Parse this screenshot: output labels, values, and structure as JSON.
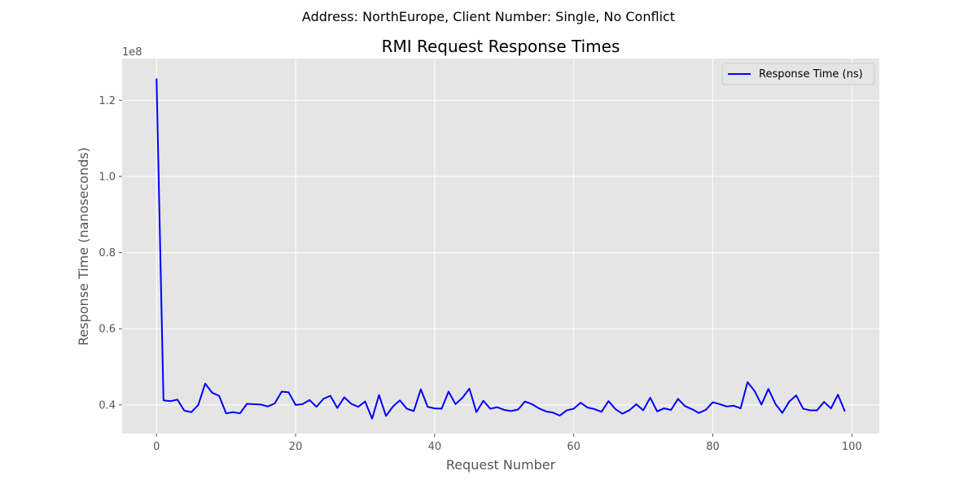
{
  "chart_data": {
    "type": "line",
    "suptitle": "Address: NorthEurope, Client Number: Single, No Conflict",
    "title": "RMI Request Response Times",
    "xlabel": "Request Number",
    "ylabel": "Response Time (nanoseconds)",
    "y_offset_label": "1e8",
    "xlim": [
      -4.95,
      103.95
    ],
    "ylim": [
      0.325,
      1.3095
    ],
    "y_scale_note": "values in units of 1e8 ns",
    "x_ticks": [
      0,
      20,
      40,
      60,
      80,
      100
    ],
    "x_tick_labels": [
      "0",
      "20",
      "40",
      "60",
      "80",
      "100"
    ],
    "y_ticks": [
      0.4,
      0.6,
      0.8,
      1.0,
      1.2
    ],
    "y_tick_labels": [
      "0.4",
      "0.6",
      "0.8",
      "1.0",
      "1.2"
    ],
    "grid": true,
    "legend_position": "top-right",
    "series": [
      {
        "name": "Response Time (ns)",
        "color": "#0000ff",
        "x": [
          0,
          1,
          2,
          3,
          4,
          5,
          6,
          7,
          8,
          9,
          10,
          11,
          12,
          13,
          14,
          15,
          16,
          17,
          18,
          19,
          20,
          21,
          22,
          23,
          24,
          25,
          26,
          27,
          28,
          29,
          30,
          31,
          32,
          33,
          34,
          35,
          36,
          37,
          38,
          39,
          40,
          41,
          42,
          43,
          44,
          45,
          46,
          47,
          48,
          49,
          50,
          51,
          52,
          53,
          54,
          55,
          56,
          57,
          58,
          59,
          60,
          61,
          62,
          63,
          64,
          65,
          66,
          67,
          68,
          69,
          70,
          71,
          72,
          73,
          74,
          75,
          76,
          77,
          78,
          79,
          80,
          81,
          82,
          83,
          84,
          85,
          86,
          87,
          88,
          89,
          90,
          91,
          92,
          93,
          94,
          95,
          96,
          97,
          98,
          99
        ],
        "y": [
          1.257,
          0.412,
          0.41,
          0.414,
          0.385,
          0.381,
          0.4,
          0.456,
          0.432,
          0.424,
          0.378,
          0.381,
          0.378,
          0.403,
          0.402,
          0.401,
          0.396,
          0.404,
          0.435,
          0.433,
          0.4,
          0.402,
          0.413,
          0.395,
          0.416,
          0.424,
          0.392,
          0.42,
          0.403,
          0.395,
          0.409,
          0.364,
          0.426,
          0.371,
          0.396,
          0.412,
          0.39,
          0.384,
          0.441,
          0.395,
          0.391,
          0.39,
          0.435,
          0.402,
          0.419,
          0.443,
          0.381,
          0.411,
          0.39,
          0.394,
          0.387,
          0.384,
          0.388,
          0.409,
          0.402,
          0.391,
          0.383,
          0.38,
          0.372,
          0.386,
          0.39,
          0.406,
          0.393,
          0.389,
          0.382,
          0.41,
          0.389,
          0.377,
          0.386,
          0.402,
          0.386,
          0.419,
          0.383,
          0.391,
          0.387,
          0.416,
          0.397,
          0.389,
          0.379,
          0.387,
          0.407,
          0.402,
          0.396,
          0.398,
          0.391,
          0.46,
          0.437,
          0.401,
          0.442,
          0.403,
          0.379,
          0.409,
          0.425,
          0.39,
          0.386,
          0.386,
          0.408,
          0.391,
          0.427,
          0.383
        ]
      }
    ]
  }
}
